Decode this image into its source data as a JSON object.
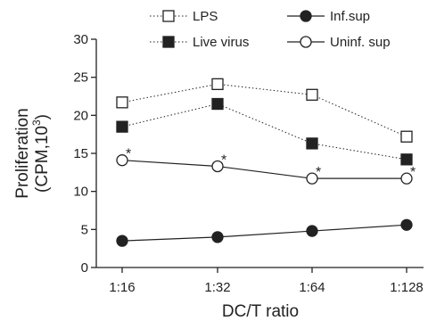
{
  "chart_data": {
    "type": "line",
    "categories": [
      "1:16",
      "1:32",
      "1:64",
      "1:128"
    ],
    "xlabel": "DC/T ratio",
    "ylabel_line1": "Proliferation",
    "ylabel_line2_prefix": "(CPM,10",
    "ylabel_line2_sup": "3",
    "ylabel_line2_suffix": ")",
    "ylim": [
      0,
      30
    ],
    "yticks": [
      0,
      5,
      10,
      15,
      20,
      25,
      30
    ],
    "grid": false,
    "legend_placement": "top",
    "series": [
      {
        "name": "LPS",
        "values": [
          21.7,
          24.1,
          22.7,
          17.2
        ],
        "marker": "square-open",
        "line": "dotted",
        "color": "#222222"
      },
      {
        "name": "Live virus",
        "values": [
          18.5,
          21.5,
          16.3,
          14.2
        ],
        "marker": "square-filled",
        "line": "dotted",
        "color": "#222222"
      },
      {
        "name": "Inf.sup",
        "values": [
          3.5,
          4.0,
          4.8,
          5.6
        ],
        "marker": "circle-filled",
        "line": "solid",
        "color": "#222222"
      },
      {
        "name": "Uninf. sup",
        "values": [
          14.1,
          13.3,
          11.7,
          11.7
        ],
        "marker": "circle-open",
        "line": "solid",
        "color": "#222222",
        "annotations": [
          "*",
          "*",
          "*",
          "*"
        ]
      }
    ]
  }
}
